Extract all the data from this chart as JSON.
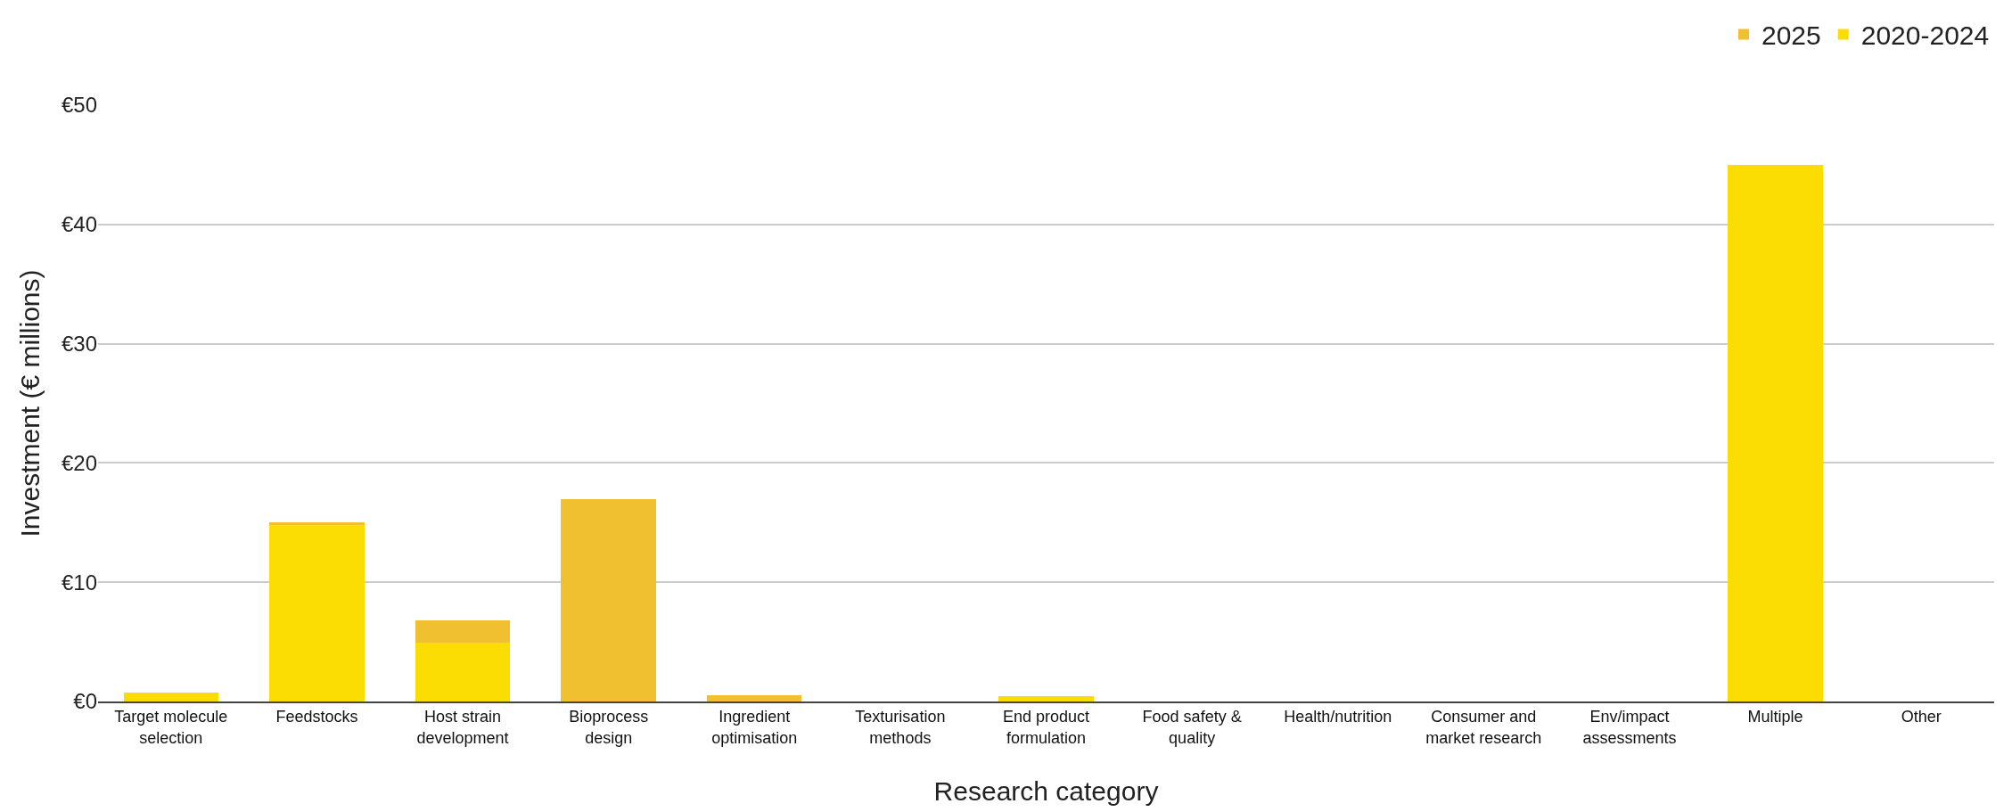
{
  "chart_data": {
    "type": "bar",
    "stacked": true,
    "xlabel": "Research category",
    "ylabel": "Investment (€ millions)",
    "categories": [
      "Target molecule selection",
      "Feedstocks",
      "Host strain development",
      "Bioprocess design",
      "Ingredient optimisation",
      "Texturisation methods",
      "End product formulation",
      "Food safety & quality",
      "Health/nutrition",
      "Consumer and market research",
      "Env/impact assessments",
      "Multiple",
      "Other"
    ],
    "series": [
      {
        "name": "2020-2024",
        "color": "#fbdd04",
        "values": [
          0.75,
          14.8,
          4.9,
          0,
          null,
          0,
          0.45,
          0,
          0,
          0,
          0,
          45,
          0
        ]
      },
      {
        "name": "2025",
        "color": "#f0c030",
        "values": [
          0,
          0.2,
          1.9,
          17,
          0.5,
          0,
          0,
          0,
          0,
          0,
          0,
          0,
          0
        ]
      }
    ],
    "ylim": [
      0,
      50
    ],
    "yticks": [
      {
        "value": 0,
        "label": "€0"
      },
      {
        "value": 10,
        "label": "€10"
      },
      {
        "value": 20,
        "label": "€20"
      },
      {
        "value": 30,
        "label": "€30"
      },
      {
        "value": 40,
        "label": "€40"
      },
      {
        "value": 50,
        "label": "€50"
      }
    ],
    "grid": "y",
    "legend": "top right"
  }
}
